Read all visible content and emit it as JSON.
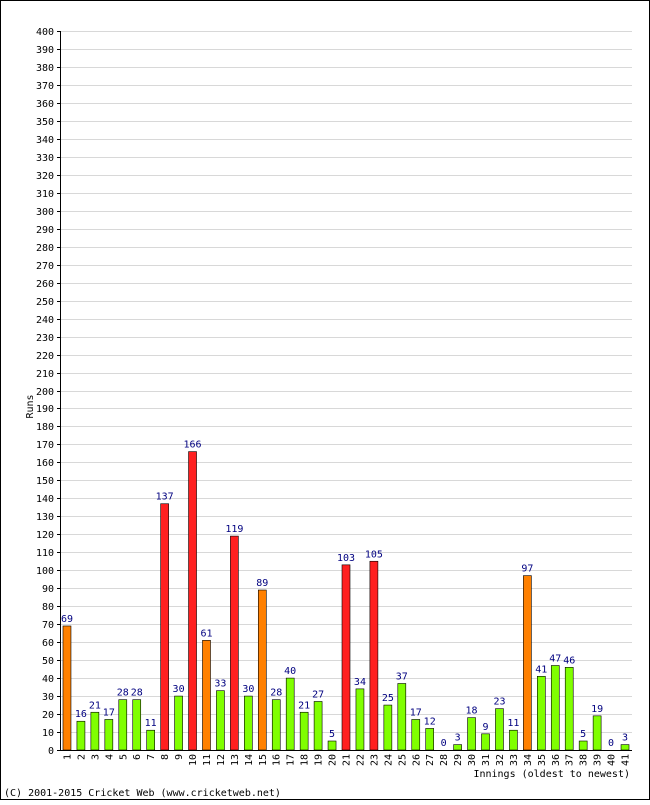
{
  "chart_data": {
    "type": "bar",
    "ylabel": "Runs",
    "xlabel": "Innings (oldest to newest)",
    "ylim": [
      0,
      400
    ],
    "ytick_step": 10,
    "grid": true,
    "colors": {
      "under_50": "#80ff00",
      "fifty": "#ff8000",
      "hundred": "#ff2020"
    },
    "categories": [
      "1",
      "2",
      "3",
      "4",
      "5",
      "6",
      "7",
      "8",
      "9",
      "10",
      "11",
      "12",
      "13",
      "14",
      "15",
      "16",
      "17",
      "18",
      "19",
      "20",
      "21",
      "22",
      "23",
      "24",
      "25",
      "26",
      "27",
      "28",
      "29",
      "30",
      "31",
      "32",
      "33",
      "34",
      "35",
      "36",
      "37",
      "38",
      "39",
      "40",
      "41"
    ],
    "values": [
      69,
      16,
      21,
      17,
      28,
      28,
      11,
      137,
      30,
      166,
      61,
      33,
      119,
      30,
      89,
      28,
      40,
      21,
      27,
      5,
      103,
      34,
      105,
      25,
      37,
      17,
      12,
      0,
      3,
      18,
      9,
      23,
      11,
      97,
      41,
      47,
      46,
      5,
      19,
      0,
      3
    ]
  },
  "footer": "(C) 2001-2015 Cricket Web (www.cricketweb.net)"
}
